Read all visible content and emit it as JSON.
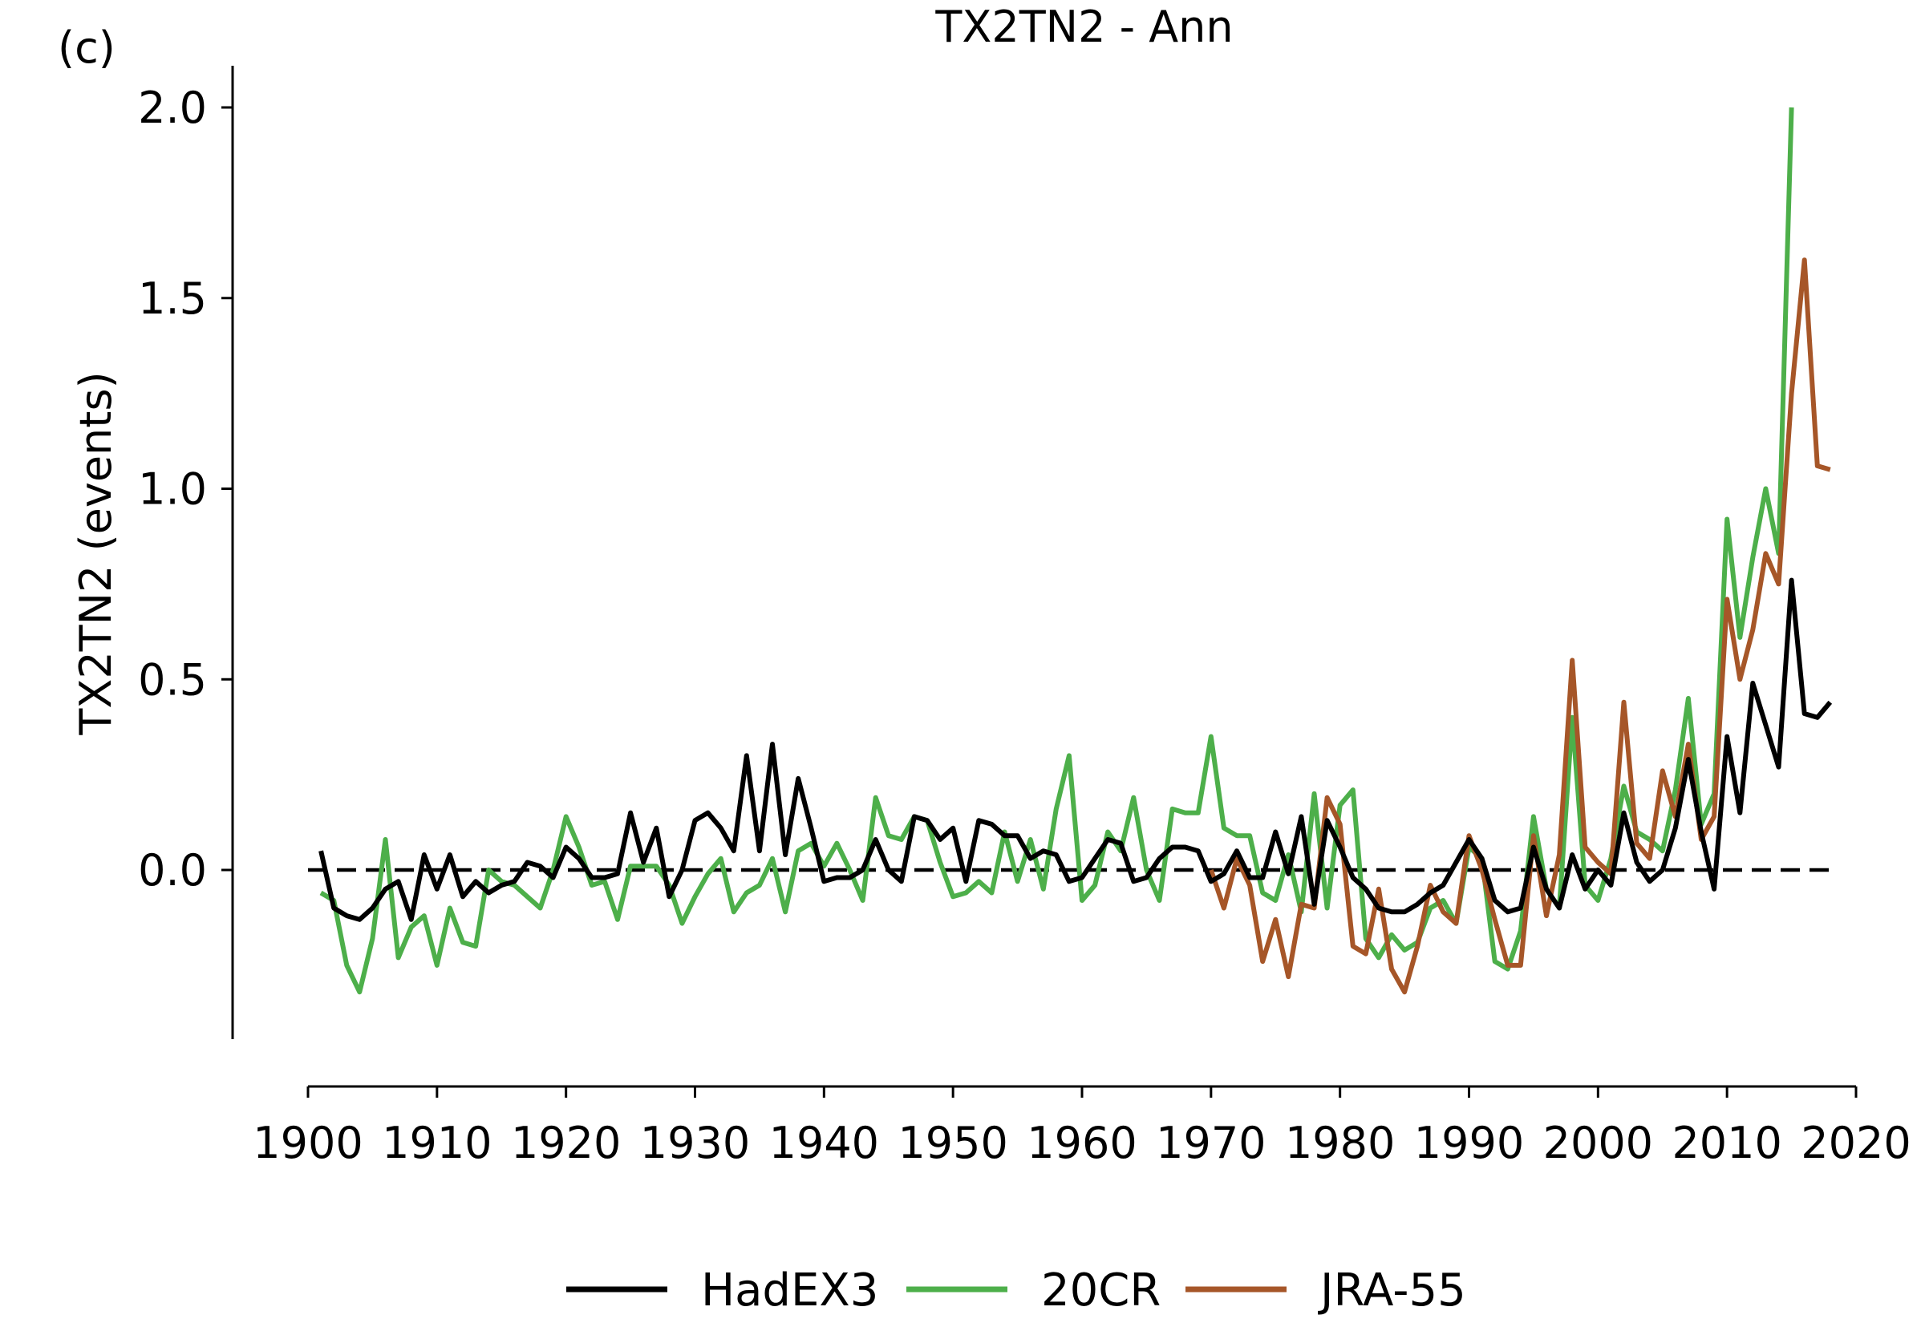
{
  "chart_data": {
    "type": "line",
    "panel_label": "(c)",
    "title": "TX2TN2 - Ann",
    "xlabel": "",
    "ylabel": "TX2TN2 (events)",
    "xlim": [
      1900,
      2020
    ],
    "ylim": [
      -0.44,
      2.1
    ],
    "x_ticks": [
      1900,
      1910,
      1920,
      1930,
      1940,
      1950,
      1960,
      1970,
      1980,
      1990,
      2000,
      2010,
      2020
    ],
    "y_ticks": [
      0.0,
      0.5,
      1.0,
      1.5,
      2.0
    ],
    "y_tick_labels": [
      "0.0",
      "0.5",
      "1.0",
      "1.5",
      "2.0"
    ],
    "reference_line": {
      "y": 0.0,
      "style": "dashed",
      "color": "#000000"
    },
    "grid": false,
    "legend_position": "bottom-center",
    "series": [
      {
        "name": "HadEX3",
        "color": "#000000",
        "x_start": 1901,
        "values": [
          0.05,
          -0.1,
          -0.12,
          -0.13,
          -0.1,
          -0.05,
          -0.03,
          -0.13,
          0.04,
          -0.05,
          0.04,
          -0.07,
          -0.03,
          -0.06,
          -0.04,
          -0.03,
          0.02,
          0.01,
          -0.02,
          0.06,
          0.03,
          -0.02,
          -0.02,
          -0.01,
          0.15,
          0.02,
          0.11,
          -0.07,
          0.0,
          0.13,
          0.15,
          0.11,
          0.05,
          0.3,
          0.05,
          0.33,
          0.04,
          0.24,
          0.11,
          -0.03,
          -0.02,
          -0.02,
          0.0,
          0.08,
          0.0,
          -0.03,
          0.14,
          0.13,
          0.08,
          0.11,
          -0.03,
          0.13,
          0.12,
          0.09,
          0.09,
          0.03,
          0.05,
          0.04,
          -0.03,
          -0.02,
          0.03,
          0.08,
          0.07,
          -0.03,
          -0.02,
          0.03,
          0.06,
          0.06,
          0.05,
          -0.03,
          -0.01,
          0.05,
          -0.02,
          -0.02,
          0.1,
          -0.01,
          0.14,
          -0.09,
          0.13,
          0.06,
          -0.02,
          -0.05,
          -0.1,
          -0.11,
          -0.11,
          -0.09,
          -0.06,
          -0.04,
          0.02,
          0.08,
          0.03,
          -0.08,
          -0.11,
          -0.1,
          0.06,
          -0.05,
          -0.1,
          0.04,
          -0.05,
          0.0,
          -0.04,
          0.15,
          0.02,
          -0.03,
          0.0,
          0.11,
          0.29,
          0.1,
          -0.05,
          0.35,
          0.15,
          0.49,
          0.38,
          0.27,
          0.76,
          0.41,
          0.4,
          0.44
        ]
      },
      {
        "name": "20CR",
        "color": "#4daf4a",
        "x_start": 1901,
        "values": [
          -0.06,
          -0.08,
          -0.25,
          -0.32,
          -0.18,
          0.08,
          -0.23,
          -0.15,
          -0.12,
          -0.25,
          -0.1,
          -0.19,
          -0.2,
          0.0,
          -0.03,
          -0.04,
          -0.07,
          -0.1,
          0.0,
          0.14,
          0.06,
          -0.04,
          -0.03,
          -0.13,
          0.01,
          0.01,
          0.01,
          -0.04,
          -0.14,
          -0.07,
          -0.01,
          0.03,
          -0.11,
          -0.06,
          -0.04,
          0.03,
          -0.11,
          0.05,
          0.07,
          0.01,
          0.07,
          0.0,
          -0.08,
          0.19,
          0.09,
          0.08,
          0.14,
          0.13,
          0.02,
          -0.07,
          -0.06,
          -0.03,
          -0.06,
          0.1,
          -0.03,
          0.08,
          -0.05,
          0.16,
          0.3,
          -0.08,
          -0.04,
          0.1,
          0.05,
          0.19,
          0.0,
          -0.08,
          0.16,
          0.15,
          0.15,
          0.35,
          0.11,
          0.09,
          0.09,
          -0.06,
          -0.08,
          0.04,
          -0.11,
          0.2,
          -0.1,
          0.17,
          0.21,
          -0.18,
          -0.23,
          -0.17,
          -0.21,
          -0.19,
          -0.1,
          -0.08,
          -0.14,
          0.06,
          0.03,
          -0.24,
          -0.26,
          -0.16,
          0.14,
          -0.05,
          -0.1,
          0.4,
          -0.04,
          -0.08,
          0.03,
          0.22,
          0.1,
          0.08,
          0.05,
          0.21,
          0.45,
          0.12,
          0.2,
          0.92,
          0.61,
          0.82,
          1.0,
          0.83,
          2.0
        ]
      },
      {
        "name": "JRA-55",
        "color": "#a65628",
        "x_start": 1970,
        "values": [
          0.0,
          -0.1,
          0.03,
          -0.04,
          -0.24,
          -0.13,
          -0.28,
          -0.09,
          -0.1,
          0.19,
          0.12,
          -0.2,
          -0.22,
          -0.05,
          -0.26,
          -0.32,
          -0.2,
          -0.04,
          -0.11,
          -0.14,
          0.09,
          0.0,
          -0.13,
          -0.25,
          -0.25,
          0.09,
          -0.12,
          0.04,
          0.55,
          0.06,
          0.02,
          -0.01,
          0.44,
          0.07,
          0.03,
          0.26,
          0.14,
          0.33,
          0.08,
          0.14,
          0.71,
          0.5,
          0.63,
          0.83,
          0.75,
          1.25,
          1.6,
          1.06,
          1.05
        ]
      }
    ]
  }
}
